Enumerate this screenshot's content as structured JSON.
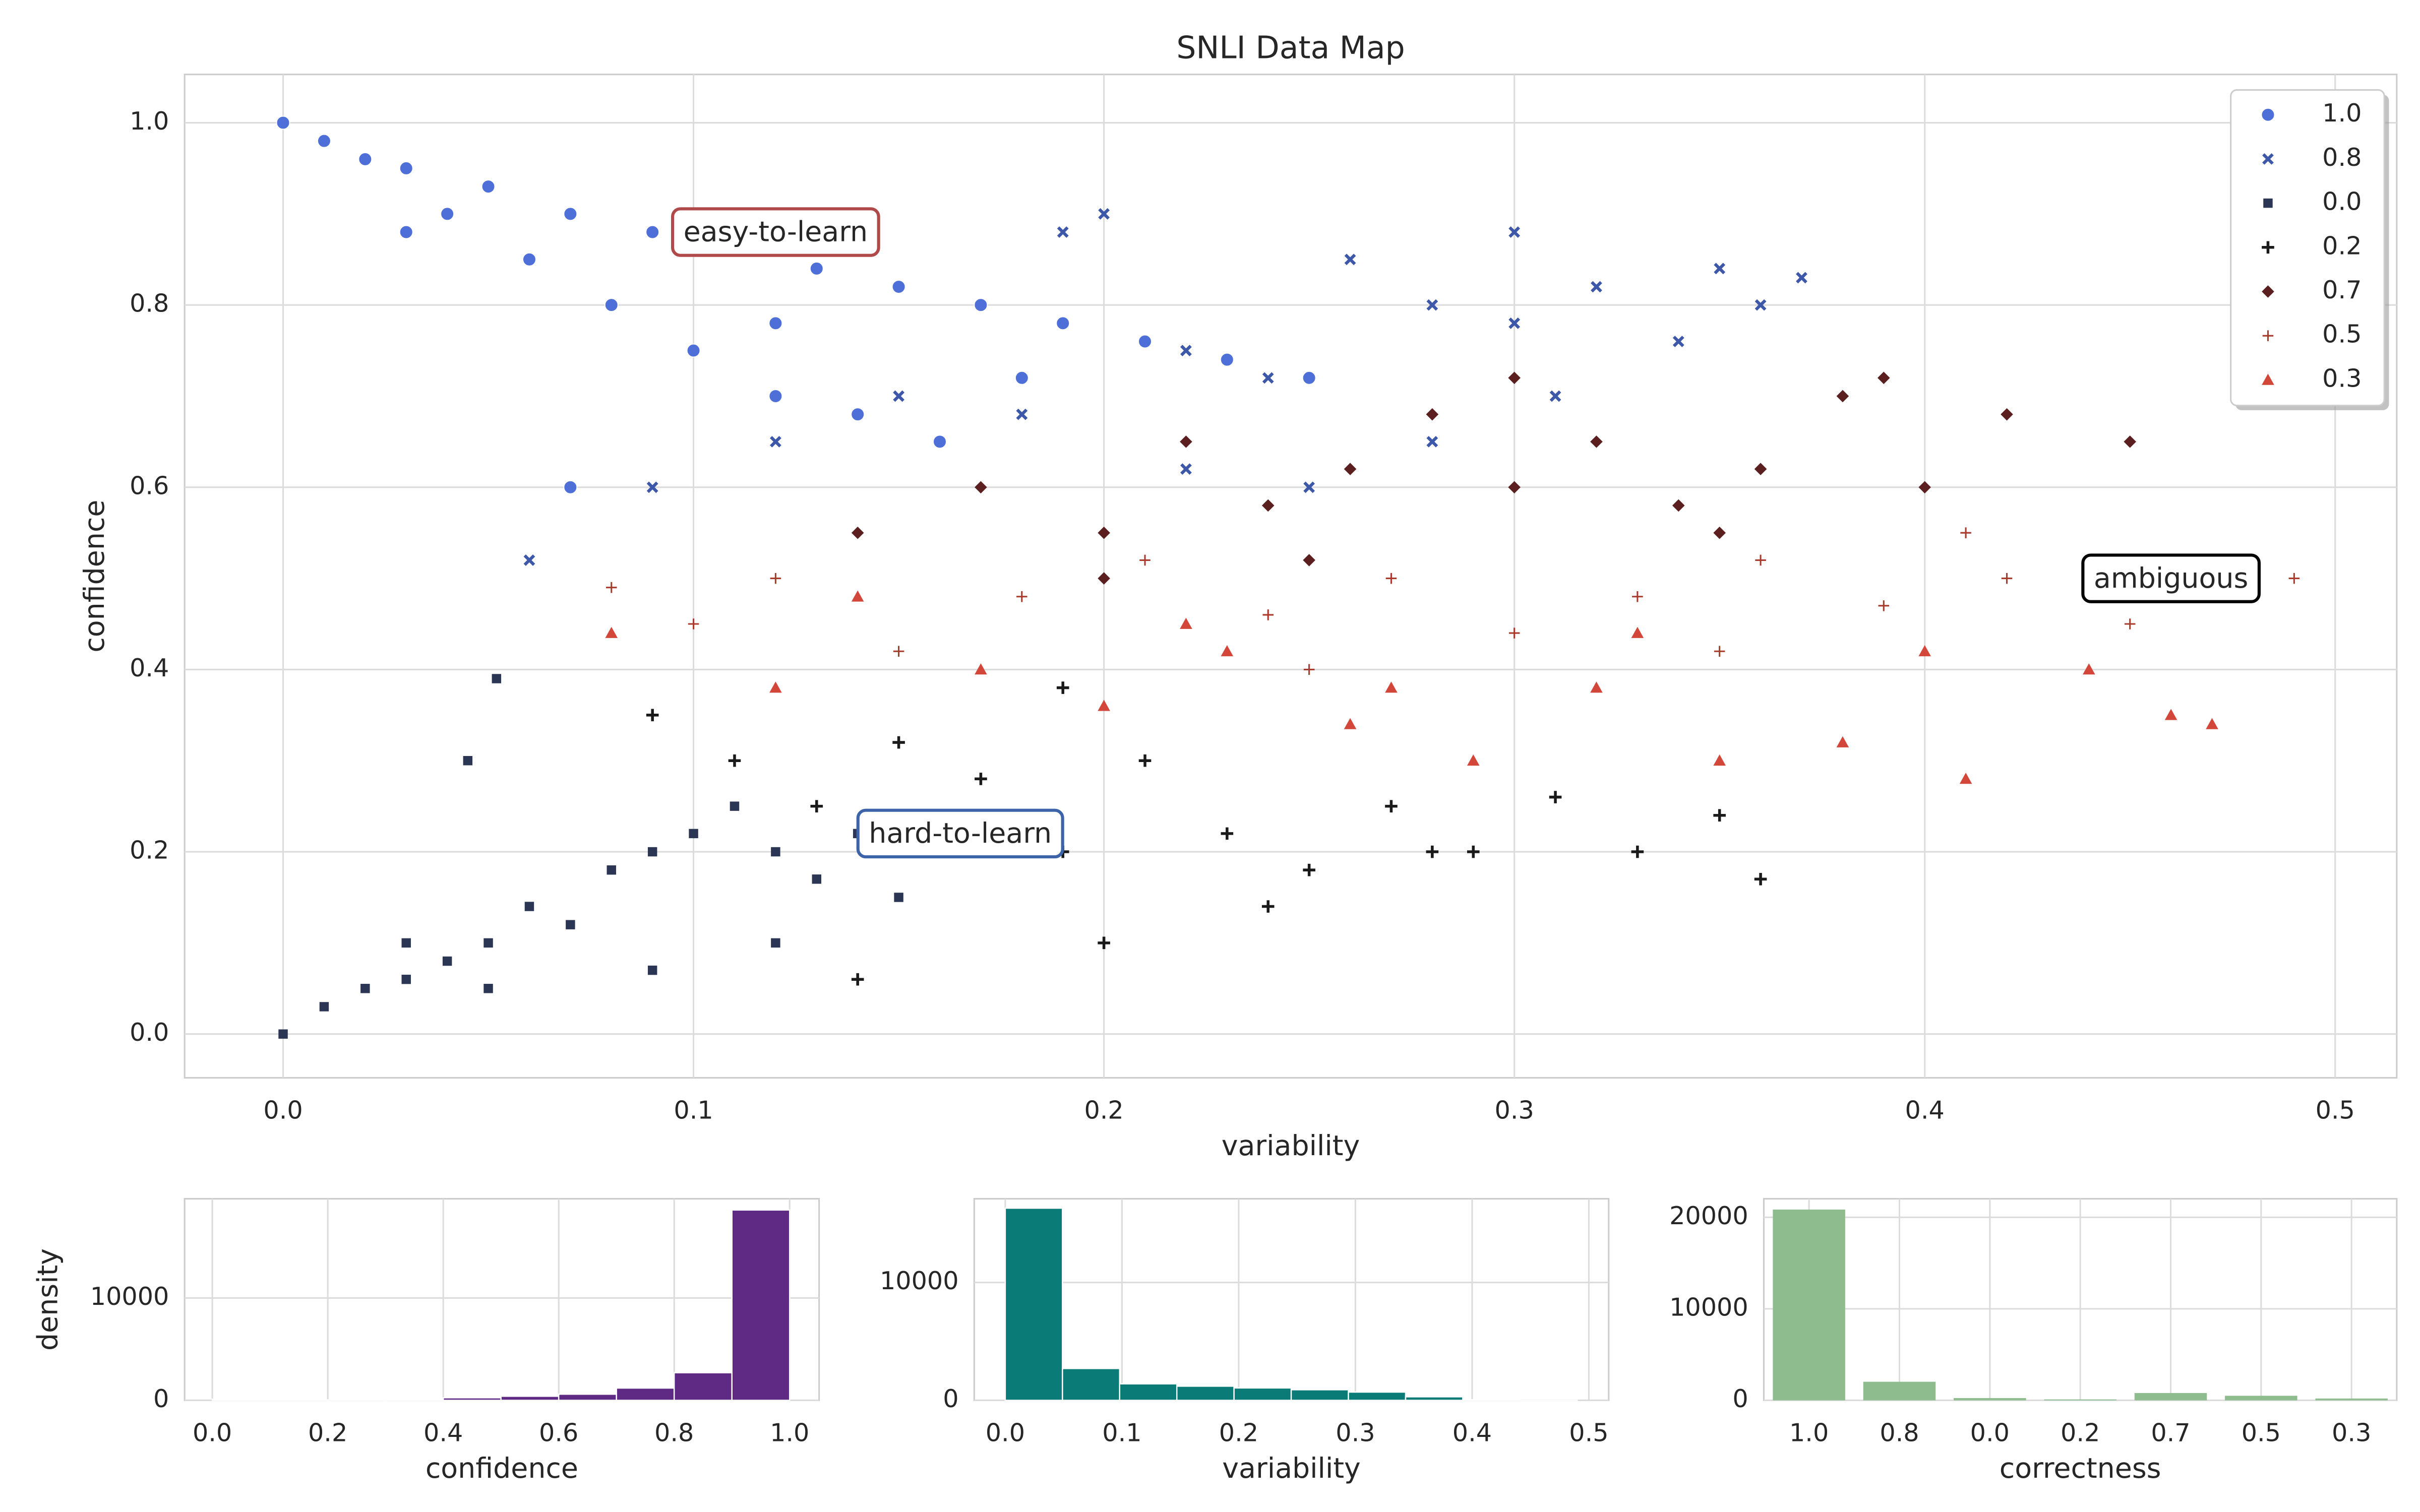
{
  "chart_data": [
    {
      "type": "scatter",
      "title": "SNLI Data Map",
      "xlabel": "variability",
      "ylabel": "confidence",
      "xlim": [
        -0.024,
        0.515
      ],
      "ylim": [
        -0.048,
        1.053
      ],
      "xticks": [
        {
          "value": 0,
          "label": "0.0"
        },
        0.1,
        0.2,
        0.3,
        0.4,
        0.5
      ],
      "yticks": [
        {
          "value": 0,
          "label": "0.0"
        },
        0.2,
        0.4,
        0.6,
        0.8,
        {
          "value": 1,
          "label": "1.0"
        }
      ],
      "grid": true,
      "legend": "upper right",
      "series": [
        {
          "name": "1.0",
          "color": "#4e6fd8",
          "marker": "circle",
          "x": [
            0.0,
            0.01,
            0.02,
            0.03,
            0.05,
            0.07,
            0.09,
            0.11,
            0.13,
            0.15,
            0.17,
            0.19,
            0.21,
            0.23,
            0.25,
            0.04,
            0.06,
            0.08,
            0.1,
            0.12,
            0.14,
            0.16,
            0.03,
            0.07,
            0.12,
            0.18
          ],
          "values": [
            1.0,
            0.98,
            0.96,
            0.95,
            0.93,
            0.9,
            0.88,
            0.86,
            0.84,
            0.82,
            0.8,
            0.78,
            0.76,
            0.74,
            0.72,
            0.9,
            0.85,
            0.8,
            0.75,
            0.7,
            0.68,
            0.65,
            0.88,
            0.6,
            0.78,
            0.72
          ]
        },
        {
          "name": "0.8",
          "color": "#3d58a8",
          "marker": "x",
          "x": [
            0.12,
            0.15,
            0.18,
            0.2,
            0.22,
            0.24,
            0.26,
            0.28,
            0.3,
            0.32,
            0.34,
            0.36,
            0.37,
            0.25,
            0.28,
            0.31,
            0.22,
            0.19,
            0.06,
            0.09,
            0.3,
            0.35
          ],
          "values": [
            0.65,
            0.7,
            0.68,
            0.9,
            0.75,
            0.72,
            0.85,
            0.8,
            0.78,
            0.82,
            0.76,
            0.8,
            0.83,
            0.6,
            0.65,
            0.7,
            0.62,
            0.88,
            0.52,
            0.6,
            0.88,
            0.84
          ]
        },
        {
          "name": "0.0",
          "color": "#2b3655",
          "marker": "square",
          "x": [
            0.0,
            0.01,
            0.02,
            0.03,
            0.04,
            0.05,
            0.06,
            0.07,
            0.08,
            0.09,
            0.1,
            0.11,
            0.12,
            0.13,
            0.14,
            0.15,
            0.03,
            0.05,
            0.09,
            0.12,
            0.045,
            0.052
          ],
          "values": [
            0.0,
            0.03,
            0.05,
            0.06,
            0.08,
            0.1,
            0.14,
            0.12,
            0.18,
            0.2,
            0.22,
            0.25,
            0.2,
            0.17,
            0.22,
            0.15,
            0.1,
            0.05,
            0.07,
            0.1,
            0.3,
            0.39
          ]
        },
        {
          "name": "0.2",
          "color": "#1a1a1a",
          "marker": "plus",
          "x": [
            0.09,
            0.11,
            0.13,
            0.15,
            0.17,
            0.19,
            0.21,
            0.23,
            0.25,
            0.27,
            0.29,
            0.31,
            0.33,
            0.2,
            0.24,
            0.28,
            0.36,
            0.35,
            0.14,
            0.19
          ],
          "values": [
            0.35,
            0.3,
            0.25,
            0.32,
            0.28,
            0.2,
            0.3,
            0.22,
            0.18,
            0.25,
            0.2,
            0.26,
            0.2,
            0.1,
            0.14,
            0.2,
            0.17,
            0.24,
            0.06,
            0.38
          ]
        },
        {
          "name": "0.7",
          "color": "#5b1f1f",
          "marker": "diamond",
          "x": [
            0.14,
            0.17,
            0.2,
            0.22,
            0.24,
            0.26,
            0.28,
            0.3,
            0.32,
            0.34,
            0.36,
            0.38,
            0.4,
            0.42,
            0.45,
            0.2,
            0.25,
            0.3,
            0.35,
            0.39
          ],
          "values": [
            0.55,
            0.6,
            0.55,
            0.65,
            0.58,
            0.62,
            0.68,
            0.6,
            0.65,
            0.58,
            0.62,
            0.7,
            0.6,
            0.68,
            0.65,
            0.5,
            0.52,
            0.72,
            0.55,
            0.72
          ]
        },
        {
          "name": "0.5",
          "color": "#a93b2c",
          "marker": "thinplus",
          "x": [
            0.08,
            0.1,
            0.12,
            0.15,
            0.18,
            0.21,
            0.24,
            0.27,
            0.3,
            0.33,
            0.36,
            0.39,
            0.42,
            0.45,
            0.49,
            0.25,
            0.35,
            0.41
          ],
          "values": [
            0.49,
            0.45,
            0.5,
            0.42,
            0.48,
            0.52,
            0.46,
            0.5,
            0.44,
            0.48,
            0.52,
            0.47,
            0.5,
            0.45,
            0.5,
            0.4,
            0.42,
            0.55
          ]
        },
        {
          "name": "0.3",
          "color": "#d2473a",
          "marker": "triangle",
          "x": [
            0.08,
            0.12,
            0.14,
            0.17,
            0.2,
            0.23,
            0.26,
            0.29,
            0.32,
            0.35,
            0.38,
            0.41,
            0.44,
            0.47,
            0.22,
            0.27,
            0.33,
            0.4,
            0.46
          ],
          "values": [
            0.44,
            0.38,
            0.48,
            0.4,
            0.36,
            0.42,
            0.34,
            0.3,
            0.38,
            0.3,
            0.32,
            0.28,
            0.4,
            0.34,
            0.45,
            0.38,
            0.44,
            0.42,
            0.35
          ]
        }
      ],
      "annotations": [
        {
          "text": "easy-to-learn",
          "x": 0.12,
          "y": 0.88,
          "edgecolor": "#b04a4a"
        },
        {
          "text": "hard-to-learn",
          "x": 0.165,
          "y": 0.22,
          "edgecolor": "#3d63a8"
        },
        {
          "text": "ambiguous",
          "x": 0.46,
          "y": 0.5,
          "edgecolor": "#000000"
        }
      ]
    },
    {
      "type": "histogram",
      "xlabel": "confidence",
      "ylabel": "density",
      "color": "#5e2a84",
      "grid": true,
      "xlim": [
        -0.048,
        1.051
      ],
      "ylim": [
        0,
        19700
      ],
      "xticks": [
        {
          "value": 0,
          "label": "0.0"
        },
        0.2,
        0.4,
        0.6,
        0.8,
        {
          "value": 1,
          "label": "1.0"
        }
      ],
      "yticks": [
        0,
        10000
      ],
      "bins": [
        0,
        0.1,
        0.2,
        0.3,
        0.4,
        0.5,
        0.6,
        0.7,
        0.8,
        0.9,
        1.0
      ],
      "values": [
        100,
        50,
        30,
        100,
        250,
        400,
        600,
        1200,
        2700,
        18600
      ]
    },
    {
      "type": "histogram",
      "xlabel": "variability",
      "color": "#0b7b77",
      "grid": true,
      "xlim": [
        -0.0266,
        0.517
      ],
      "ylim": [
        0,
        17100
      ],
      "xticks": [
        {
          "value": 0,
          "label": "0.0"
        },
        0.1,
        0.2,
        0.3,
        0.4,
        0.5
      ],
      "yticks": [
        0,
        10000
      ],
      "bins": [
        0,
        0.049,
        0.098,
        0.147,
        0.196,
        0.245,
        0.294,
        0.343,
        0.392,
        0.441,
        0.49
      ],
      "values": [
        16300,
        2700,
        1400,
        1200,
        1050,
        900,
        700,
        300,
        50,
        10
      ]
    },
    {
      "type": "bar",
      "xlabel": "correctness",
      "color": "#8fbc8f",
      "grid": true,
      "ylim": [
        0,
        22030
      ],
      "yticks": [
        0,
        10000,
        20000
      ],
      "categories": [
        "1.0",
        "0.8",
        "0.0",
        "0.2",
        "0.7",
        "0.5",
        "0.3"
      ],
      "values": [
        20850,
        2030,
        250,
        100,
        800,
        500,
        200
      ]
    }
  ]
}
